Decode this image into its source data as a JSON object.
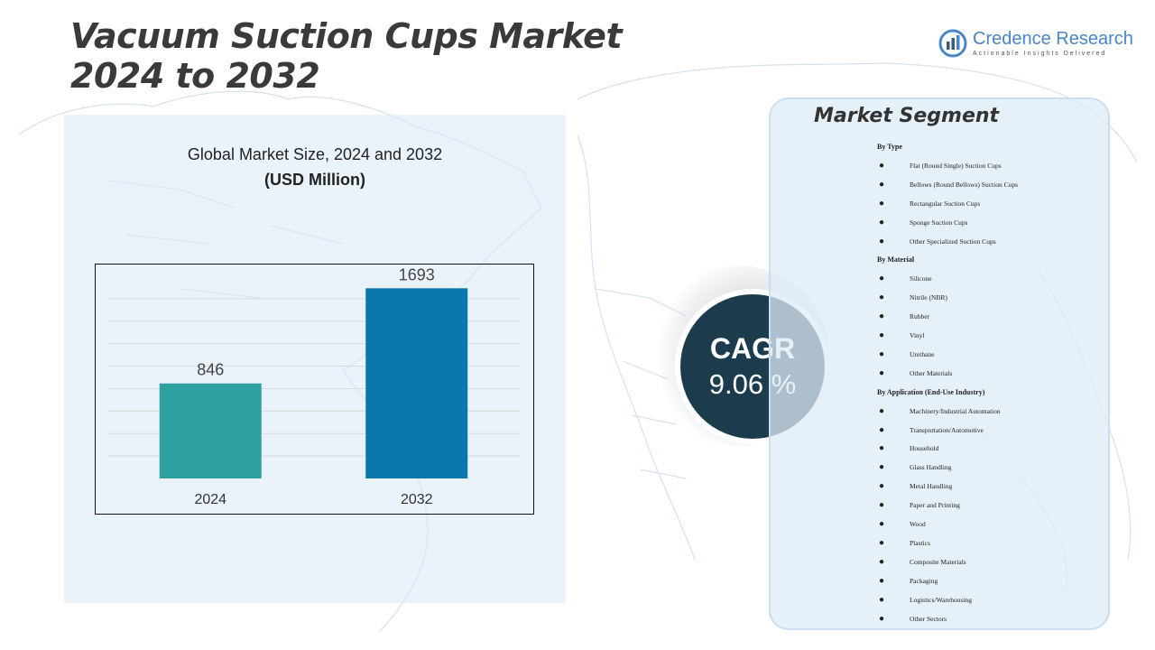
{
  "title": {
    "line1": "Vacuum Suction Cups Market",
    "line2": "2024 to 2032"
  },
  "logo": {
    "name": "Credence Research",
    "tagline": "Actionable Insights Delivered"
  },
  "chart_panel": {
    "title": "Global Market Size, 2024 and 2032",
    "unit": "(USD Million)"
  },
  "chart_data": {
    "type": "bar",
    "title": "Global Market Size, 2024 and 2032",
    "ylabel": "(USD Million)",
    "categories": [
      "2024",
      "2032"
    ],
    "values": [
      846,
      1693
    ],
    "ylim": [
      0,
      1800
    ],
    "grid": true,
    "colors": [
      "#2fa0a0",
      "#0a78ad"
    ]
  },
  "cagr": {
    "label": "CAGR",
    "value": "9.06 %"
  },
  "segment": {
    "title": "Market Segment",
    "groups": [
      {
        "heading": "By Type",
        "items": [
          "Flat (Round Single) Suction Cups",
          "Bellows (Round Bellows) Suction Cups",
          "Rectangular Suction Cups",
          "Sponge Suction Cups",
          "Other Specialized Suction Cups"
        ]
      },
      {
        "heading": "By Material",
        "items": [
          "Silicone",
          "Nitrile (NBR)",
          "Rubber",
          "Vinyl",
          "Urethane",
          "Other Materials"
        ]
      },
      {
        "heading": "By Application (End-Use Industry)",
        "items": [
          "Machinery/Industrial Automation",
          "Transportation/Automotive",
          "Household",
          "Glass Handling",
          "Metal Handling",
          "Paper and Printing",
          "Wood",
          "Plastics",
          "Composite Materials",
          "Packaging",
          "Logistics/Warehousing",
          "Other Sectors"
        ]
      }
    ]
  }
}
